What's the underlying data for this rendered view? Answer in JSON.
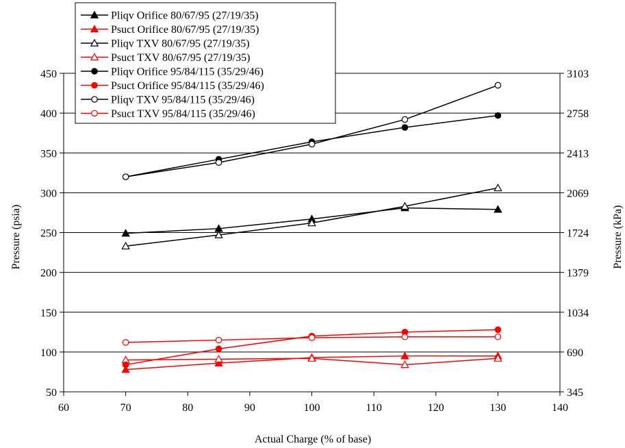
{
  "chart_data": {
    "type": "line",
    "xlabel": "Actual Charge (% of base)",
    "ylabel": "Pressure (psia)",
    "y2label": "Pressure (kPa)",
    "xlim": [
      60,
      140
    ],
    "ylim": [
      50,
      450
    ],
    "x_ticks": [
      "60",
      "70",
      "80",
      "90",
      "100",
      "110",
      "120",
      "130",
      "140"
    ],
    "y_ticks": [
      "50",
      "100",
      "150",
      "200",
      "250",
      "300",
      "350",
      "400",
      "450"
    ],
    "y2_ticks": [
      "345",
      "690",
      "1034",
      "1379",
      "1724",
      "2069",
      "2413",
      "2758",
      "3103"
    ],
    "grid": "horizontal",
    "legend_position": "top-left",
    "x": [
      70,
      85,
      100,
      115,
      130
    ],
    "series": [
      {
        "name": "Pliqv Orifice 80/67/95 (27/19/35)",
        "color": "#000000",
        "marker": "triangle-filled",
        "values": [
          249,
          255,
          267,
          281,
          279
        ]
      },
      {
        "name": "Psuct Orifice 80/67/95 (27/19/35)",
        "color": "#ff0000",
        "marker": "triangle-filled",
        "values": [
          78,
          86,
          93,
          95,
          95
        ]
      },
      {
        "name": "Pliqv TXV 80/67/95 (27/19/35)",
        "color": "#000000",
        "marker": "triangle-open",
        "values": [
          233,
          247,
          262,
          283,
          306
        ]
      },
      {
        "name": "Psuct TXV 80/67/95 (27/19/35)",
        "color": "#ff0000",
        "marker": "triangle-open",
        "values": [
          90,
          91,
          92,
          84,
          92
        ]
      },
      {
        "name": "Pliqv Orifice 95/84/115 (35/29/46)",
        "color": "#000000",
        "marker": "circle-filled",
        "values": [
          320,
          342,
          364,
          382,
          397
        ]
      },
      {
        "name": "Psuct Orifice 95/84/115 (35/29/46)",
        "color": "#ff0000",
        "marker": "circle-filled",
        "values": [
          84,
          104,
          120,
          125,
          128
        ]
      },
      {
        "name": "Pliqv TXV 95/84/115 (35/29/46)",
        "color": "#000000",
        "marker": "circle-open",
        "values": [
          320,
          338,
          361,
          392,
          435
        ]
      },
      {
        "name": "Psuct TXV 95/84/115 (35/29/46)",
        "color": "#ff0000",
        "marker": "circle-open",
        "values": [
          112,
          115,
          118,
          119,
          119
        ]
      }
    ]
  }
}
